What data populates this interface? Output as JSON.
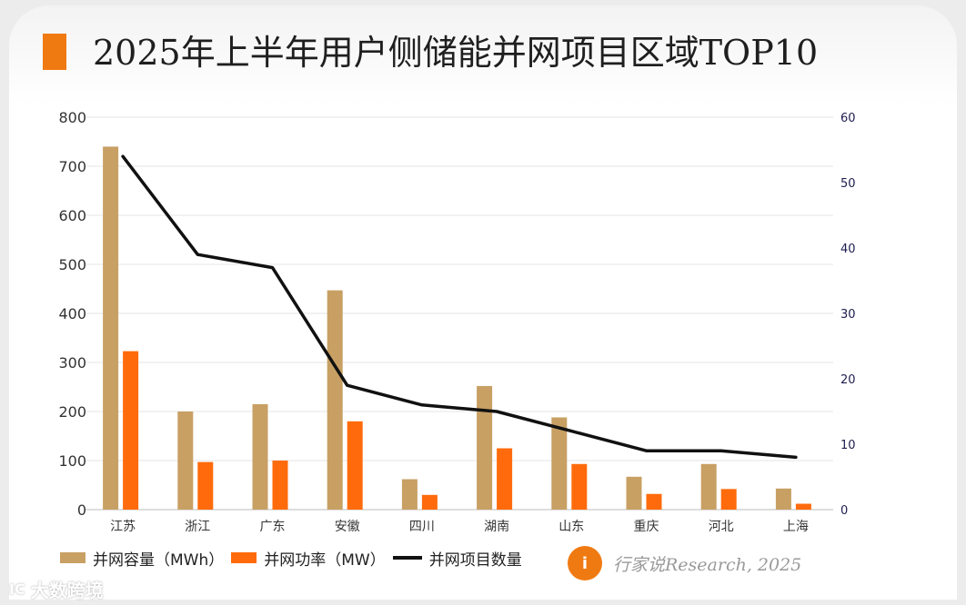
{
  "title": "2025年上半年用户侧储能并网项目区域TOP10",
  "colors": {
    "capacity": "#c8a064",
    "power": "#ff6b0c",
    "count": "#111111",
    "grid": "#e4e4e4",
    "accent": "#f07a12"
  },
  "chart_data": {
    "type": "bar",
    "categories": [
      "江苏",
      "浙江",
      "广东",
      "安徽",
      "四川",
      "湖南",
      "山东",
      "重庆",
      "河北",
      "上海"
    ],
    "series": [
      {
        "name": "并网容量（MWh）",
        "type": "bar",
        "axis": "left",
        "values": [
          740,
          200,
          215,
          447,
          62,
          252,
          188,
          67,
          93,
          43
        ]
      },
      {
        "name": "并网功率（MW）",
        "type": "bar",
        "axis": "left",
        "values": [
          323,
          97,
          100,
          180,
          30,
          125,
          93,
          32,
          42,
          12
        ]
      },
      {
        "name": "并网项目数量",
        "type": "line",
        "axis": "right",
        "values": [
          54,
          39,
          37,
          19,
          16,
          15,
          12,
          9,
          9,
          8
        ]
      }
    ],
    "ylim_left": [
      0,
      800
    ],
    "yticks_left": [
      "0",
      "100",
      "200",
      "300",
      "400",
      "500",
      "600",
      "700",
      "800"
    ],
    "ylim_right": [
      0,
      60
    ],
    "yticks_right": [
      "0",
      "10",
      "20",
      "30",
      "40",
      "50",
      "60"
    ],
    "grid": true,
    "legend_position": "bottom-left"
  },
  "legend": {
    "capacity": "并网容量（MWh）",
    "power": "并网功率（MW）",
    "count": "并网项目数量"
  },
  "source": {
    "logo_text": "i",
    "text": "行家说Research, 2025"
  },
  "watermark": {
    "icon": "IC",
    "text": "大数跨境"
  }
}
